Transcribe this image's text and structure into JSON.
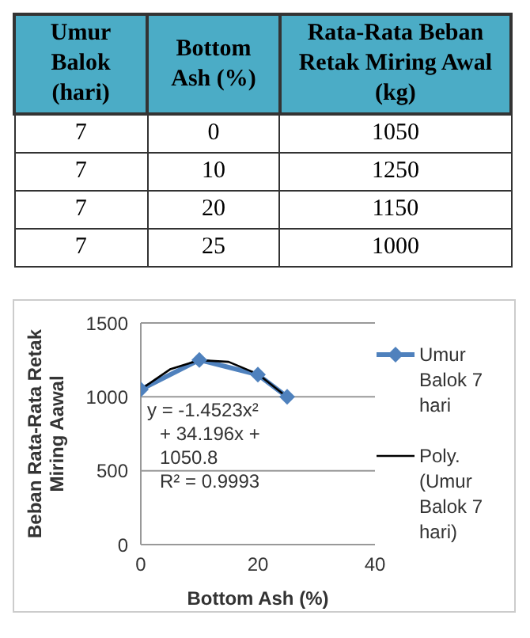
{
  "chart_data": {
    "type": "line",
    "xlabel": "Bottom Ash (%)",
    "ylabel": "Beban Rata-Rata Retak Miring Aawal",
    "x": [
      0,
      10,
      20,
      25
    ],
    "series": [
      {
        "name": "Umur Balok 7 hari",
        "color": "#4f81bd",
        "values": [
          1050,
          1250,
          1150,
          1000
        ],
        "marker": "diamond"
      },
      {
        "name": "Poly. (Umur Balok 7 hari)",
        "type": "line",
        "color": "#000000",
        "marker": "none",
        "x": [
          0,
          5,
          10,
          15,
          20,
          25
        ],
        "values": [
          1051,
          1186,
          1248,
          1237,
          1154,
          998
        ]
      }
    ],
    "xlim": [
      0,
      40
    ],
    "xticks": [
      0,
      20,
      40
    ],
    "ylim": [
      0,
      1500
    ],
    "yticks": [
      0,
      500,
      1000,
      1500
    ],
    "grid": "y",
    "legend": "right",
    "annotations": [
      "Umur Balok (hari)",
      "Bottom Ash (%)",
      "Rata-Rata Beban Retak Miring Awal (kg)",
      "7",
      "0",
      "1050",
      "7",
      "10",
      "1250",
      "7",
      "20",
      "1150",
      "7",
      "25",
      "1000",
      "y = -1.4523x² + 34.196x + 1050.8",
      "R² = 0.9993"
    ]
  }
}
